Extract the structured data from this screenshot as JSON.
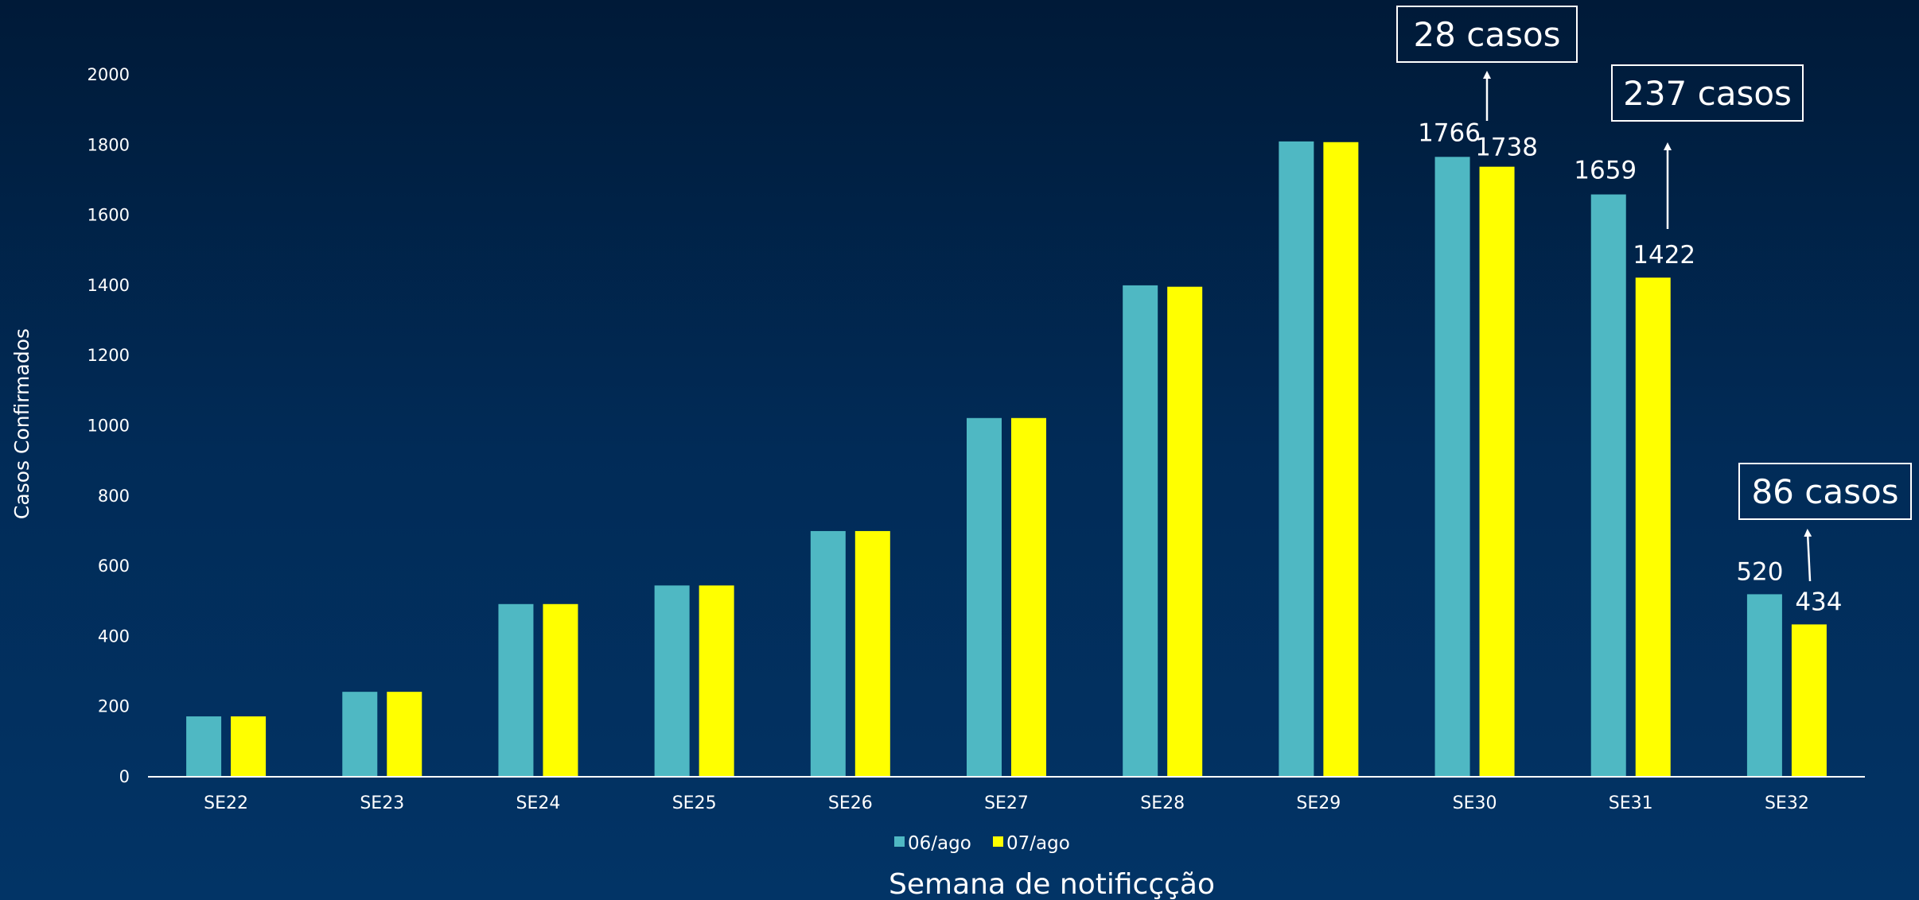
{
  "chart_data": {
    "type": "bar",
    "categories": [
      "SE22",
      "SE23",
      "SE24",
      "SE25",
      "SE26",
      "SE27",
      "SE28",
      "SE29",
      "SE30",
      "SE31",
      "SE32"
    ],
    "series": [
      {
        "name": "06/ago",
        "color": "#4fb8c3",
        "values": [
          172,
          242,
          492,
          545,
          700,
          1022,
          1400,
          1810,
          1766,
          1659,
          520
        ]
      },
      {
        "name": "07/ago",
        "color": "#ffff00",
        "values": [
          172,
          242,
          492,
          545,
          700,
          1022,
          1396,
          1808,
          1738,
          1422,
          434
        ]
      }
    ],
    "ylim": [
      0,
      2000
    ],
    "yticks": [
      0,
      200,
      400,
      600,
      800,
      1000,
      1200,
      1400,
      1600,
      1800,
      2000
    ],
    "ylabel": "Casos Confirmados",
    "xlabel": "Semana de notificçção",
    "legend_position": "bottom",
    "grid": false,
    "data_labels": [
      {
        "category": "SE30",
        "series": "06/ago",
        "text": "1766"
      },
      {
        "category": "SE30",
        "series": "07/ago",
        "text": "1738"
      },
      {
        "category": "SE31",
        "series": "06/ago",
        "text": "1659"
      },
      {
        "category": "SE31",
        "series": "07/ago",
        "text": "1422"
      },
      {
        "category": "SE32",
        "series": "06/ago",
        "text": "520"
      },
      {
        "category": "SE32",
        "series": "07/ago",
        "text": "434"
      }
    ],
    "annotations": [
      {
        "category": "SE30",
        "text": "28 casos"
      },
      {
        "category": "SE31",
        "text": "237 casos"
      },
      {
        "category": "SE32",
        "text": "86 casos"
      }
    ]
  }
}
